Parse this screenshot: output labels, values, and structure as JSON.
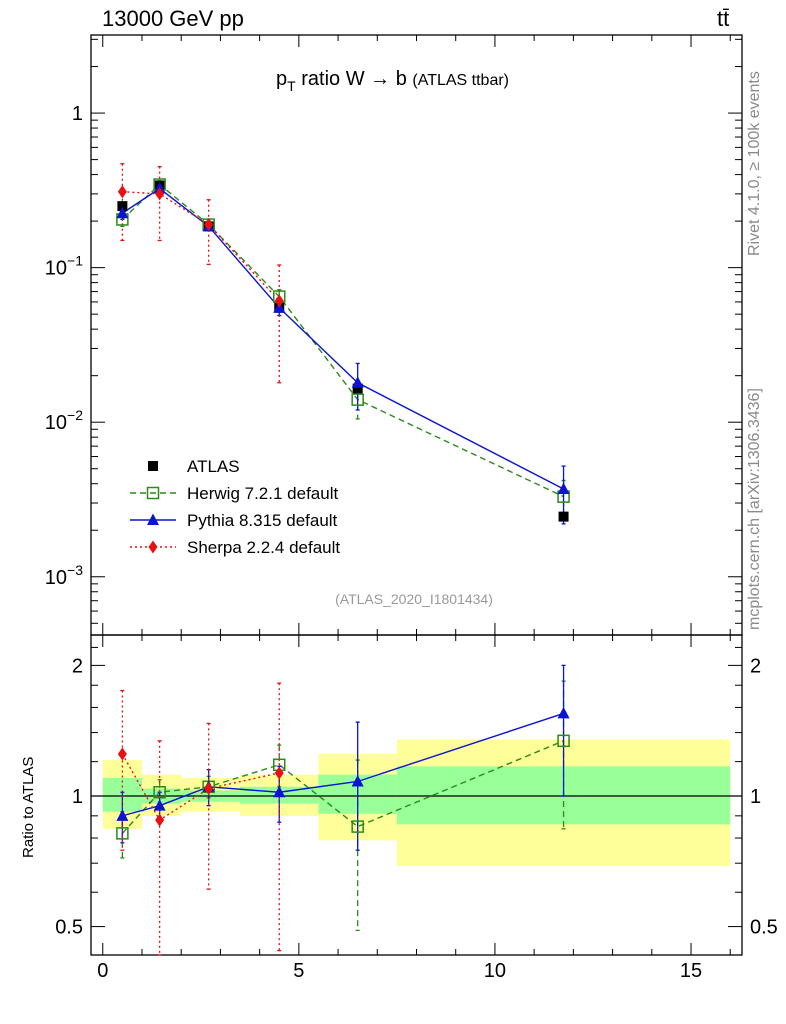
{
  "header": {
    "left": "13000 GeV pp",
    "right": "tt̄"
  },
  "side_labels": {
    "rivet": "Rivet 4.1.0, ≥ 100k events",
    "mcplots": "mcplots.cern.ch [arXiv:1306.3436]"
  },
  "chart_data": {
    "type": "scatter",
    "title_main": "p",
    "title_sub": "T",
    "title_rest": " ratio W → b",
    "title_note": "(ATLAS ttbar)",
    "analysis": "(ATLAS_2020_I1801434)",
    "main_ylog": true,
    "main_ylim": [
      0.00042,
      3.2
    ],
    "main_yticks": [
      {
        "v": 1,
        "b": "1",
        "e": ""
      },
      {
        "v": 0.1,
        "b": "10",
        "e": "−1"
      },
      {
        "v": 0.01,
        "b": "10",
        "e": "−2"
      },
      {
        "v": 0.001,
        "b": "10",
        "e": "−3"
      }
    ],
    "xlim": [
      -0.3,
      16.3
    ],
    "xticks": [
      0,
      5,
      10,
      15
    ],
    "ratio_ylabel": "Ratio to ATLAS",
    "ratio_ylog": true,
    "ratio_ylim": [
      0.43,
      2.35
    ],
    "ratio_yticks": [
      2,
      1,
      0.5
    ],
    "data_series": {
      "name": "ATLAS",
      "color": "#000000",
      "x": [
        0.5,
        1.45,
        2.7,
        4.5,
        6.5,
        11.75
      ],
      "y": [
        0.25,
        0.34,
        0.185,
        0.055,
        0.0165,
        0.00245
      ]
    },
    "bins": [
      {
        "x0": 0,
        "x1": 1
      },
      {
        "x0": 1,
        "x1": 2
      },
      {
        "x0": 2,
        "x1": 3.5
      },
      {
        "x0": 3.5,
        "x1": 5.5
      },
      {
        "x0": 5.5,
        "x1": 7.5
      },
      {
        "x0": 7.5,
        "x1": 16
      }
    ],
    "ratio_bands": {
      "stat": [
        [
          0.92,
          1.1
        ],
        [
          0.96,
          1.04
        ],
        [
          0.97,
          1.03
        ],
        [
          0.96,
          1.05
        ],
        [
          0.91,
          1.12
        ],
        [
          0.86,
          1.17
        ]
      ],
      "total": [
        [
          0.84,
          1.21
        ],
        [
          0.9,
          1.12
        ],
        [
          0.92,
          1.1
        ],
        [
          0.9,
          1.12
        ],
        [
          0.79,
          1.25
        ],
        [
          0.69,
          1.35
        ]
      ]
    },
    "series": [
      {
        "name": "Herwig 7.2.1 default",
        "color": "#2a8a1a",
        "marker": "open-square",
        "dash": "6,4",
        "x": [
          0.5,
          1.45,
          2.7,
          4.5,
          6.5,
          11.75
        ],
        "y": [
          0.205,
          0.345,
          0.19,
          0.065,
          0.014,
          0.0033
        ],
        "err": [
          [
            0.02,
            0.02
          ],
          [
            0.02,
            0.02
          ],
          [
            0.012,
            0.012
          ],
          [
            0.007,
            0.007
          ],
          [
            0.0035,
            0.0035
          ],
          [
            0.0009,
            0.0009
          ]
        ],
        "ratio": [
          0.82,
          1.02,
          1.05,
          1.18,
          0.85,
          1.34
        ],
        "ratio_err": [
          [
            0.1,
            0.1
          ],
          [
            0.07,
            0.07
          ],
          [
            0.06,
            0.06
          ],
          [
            0.13,
            0.13
          ],
          [
            0.36,
            0.36
          ],
          [
            0.5,
            0.5
          ]
        ]
      },
      {
        "name": "Pythia 8.315 default",
        "color": "#0a14d2",
        "marker": "triangle",
        "dash": "",
        "x": [
          0.5,
          1.45,
          2.7,
          4.5,
          6.5,
          11.75
        ],
        "y": [
          0.225,
          0.325,
          0.185,
          0.055,
          0.018,
          0.0037
        ],
        "err": [
          [
            0.02,
            0.02
          ],
          [
            0.02,
            0.02
          ],
          [
            0.012,
            0.012
          ],
          [
            0.006,
            0.006
          ],
          [
            0.006,
            0.006
          ],
          [
            0.0015,
            0.0015
          ]
        ],
        "ratio": [
          0.9,
          0.95,
          1.05,
          1.02,
          1.08,
          1.55
        ],
        "ratio_err": [
          [
            0.12,
            0.12
          ],
          [
            0.07,
            0.07
          ],
          [
            0.1,
            0.1
          ],
          [
            0.15,
            0.15
          ],
          [
            0.33,
            0.4
          ],
          [
            0.55,
            0.45
          ]
        ]
      },
      {
        "name": "Sherpa 2.2.4 default",
        "color": "#e81010",
        "marker": "diamond",
        "dash": "2,3",
        "x": [
          0.5,
          1.45,
          2.7,
          4.5
        ],
        "y": [
          0.31,
          0.3,
          0.19,
          0.061
        ],
        "err": [
          [
            0.16,
            0.16
          ],
          [
            0.15,
            0.15
          ],
          [
            0.085,
            0.085
          ],
          [
            0.043,
            0.043
          ]
        ],
        "ratio": [
          1.25,
          0.88,
          1.04,
          1.13
        ],
        "ratio_err": [
          [
            0.5,
            0.5
          ],
          [
            0.46,
            0.46
          ],
          [
            0.43,
            0.43
          ],
          [
            0.69,
            0.69
          ]
        ]
      }
    ]
  }
}
